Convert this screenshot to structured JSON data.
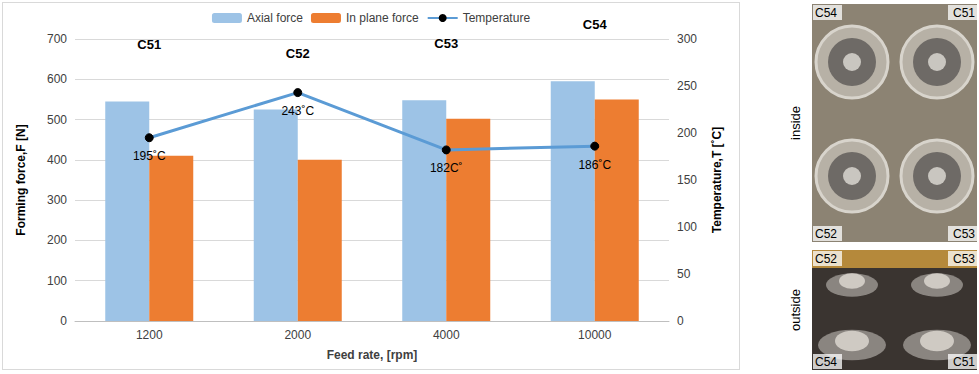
{
  "chart_data": {
    "type": "bar",
    "categories": [
      "1200",
      "2000",
      "4000",
      "10000"
    ],
    "x_label": "Feed rate, [rpm]",
    "y_label": "Forming force,F [N]",
    "y2_label": "Temperature,T [˚C]",
    "ylim": [
      0,
      700
    ],
    "yticks": [
      0,
      100,
      200,
      300,
      400,
      500,
      600,
      700
    ],
    "y2lim": [
      0,
      300
    ],
    "y2ticks": [
      0,
      50,
      100,
      150,
      200,
      250,
      300
    ],
    "grid": true,
    "legend": "top",
    "annotations": [
      "C51",
      "C52",
      "C53",
      "C54"
    ],
    "series": [
      {
        "name": "Axial force",
        "type": "bar",
        "color": "#9dc3e6",
        "values": [
          545,
          525,
          548,
          595
        ]
      },
      {
        "name": "In plane force",
        "type": "bar",
        "color": "#ed7d31",
        "values": [
          410,
          400,
          502,
          550
        ]
      },
      {
        "name": "Temperature",
        "type": "line",
        "axis": "y2",
        "color": "#5b9bd5",
        "marker": "circle",
        "data_labels": true,
        "values": [
          195,
          243,
          182,
          186
        ],
        "value_labels": [
          "195˚C",
          "243˚C",
          "182C˚",
          "186˚C"
        ]
      }
    ]
  },
  "photo": {
    "inside": {
      "label": "inside",
      "tags": [
        "C54",
        "C51",
        "C52",
        "C53"
      ]
    },
    "outside": {
      "label": "outside",
      "tags": [
        "C52",
        "C53",
        "C54",
        "C51"
      ]
    }
  }
}
